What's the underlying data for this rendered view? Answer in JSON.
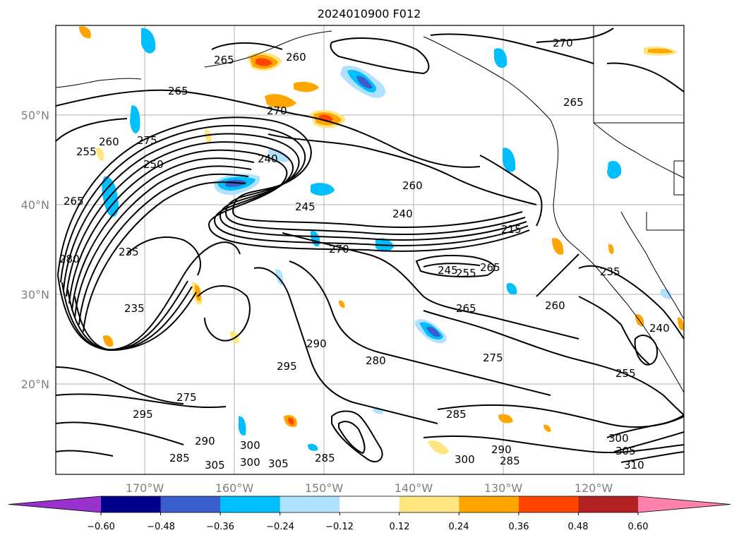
{
  "figure": {
    "title": "2024010900 F012"
  },
  "map": {
    "lat_labels": [
      "50°N",
      "40°N",
      "30°N",
      "20°N"
    ],
    "lon_labels": [
      "170°W",
      "160°W",
      "150°W",
      "140°W",
      "130°W",
      "120°W"
    ],
    "contour_color": "#000000",
    "grid_color": "#b0b0b0",
    "contour_labels": [
      "265",
      "260",
      "270",
      "265",
      "270",
      "265",
      "275",
      "255",
      "260",
      "240",
      "250",
      "245",
      "235",
      "240",
      "215",
      "260",
      "270",
      "265",
      "280",
      "235",
      "245",
      "255",
      "265",
      "235",
      "265",
      "260",
      "275",
      "290",
      "295",
      "280",
      "275",
      "285",
      "295",
      "300",
      "305",
      "300",
      "285",
      "290",
      "285",
      "300",
      "305",
      "310",
      "290",
      "285",
      "300",
      "305",
      "240",
      "255"
    ]
  },
  "colorbar": {
    "tick_labels": [
      "−0.60",
      "−0.48",
      "−0.36",
      "−0.24",
      "−0.12",
      "0.12",
      "0.24",
      "0.36",
      "0.48",
      "0.60"
    ],
    "colors": [
      "#9932cc",
      "#00008b",
      "#3a5fcd",
      "#00bfff",
      "#b0e2ff",
      "#ffffff",
      "#ffe680",
      "#ffa500",
      "#ff4500",
      "#b22222",
      "#ff82ab"
    ],
    "extend": "both"
  }
}
